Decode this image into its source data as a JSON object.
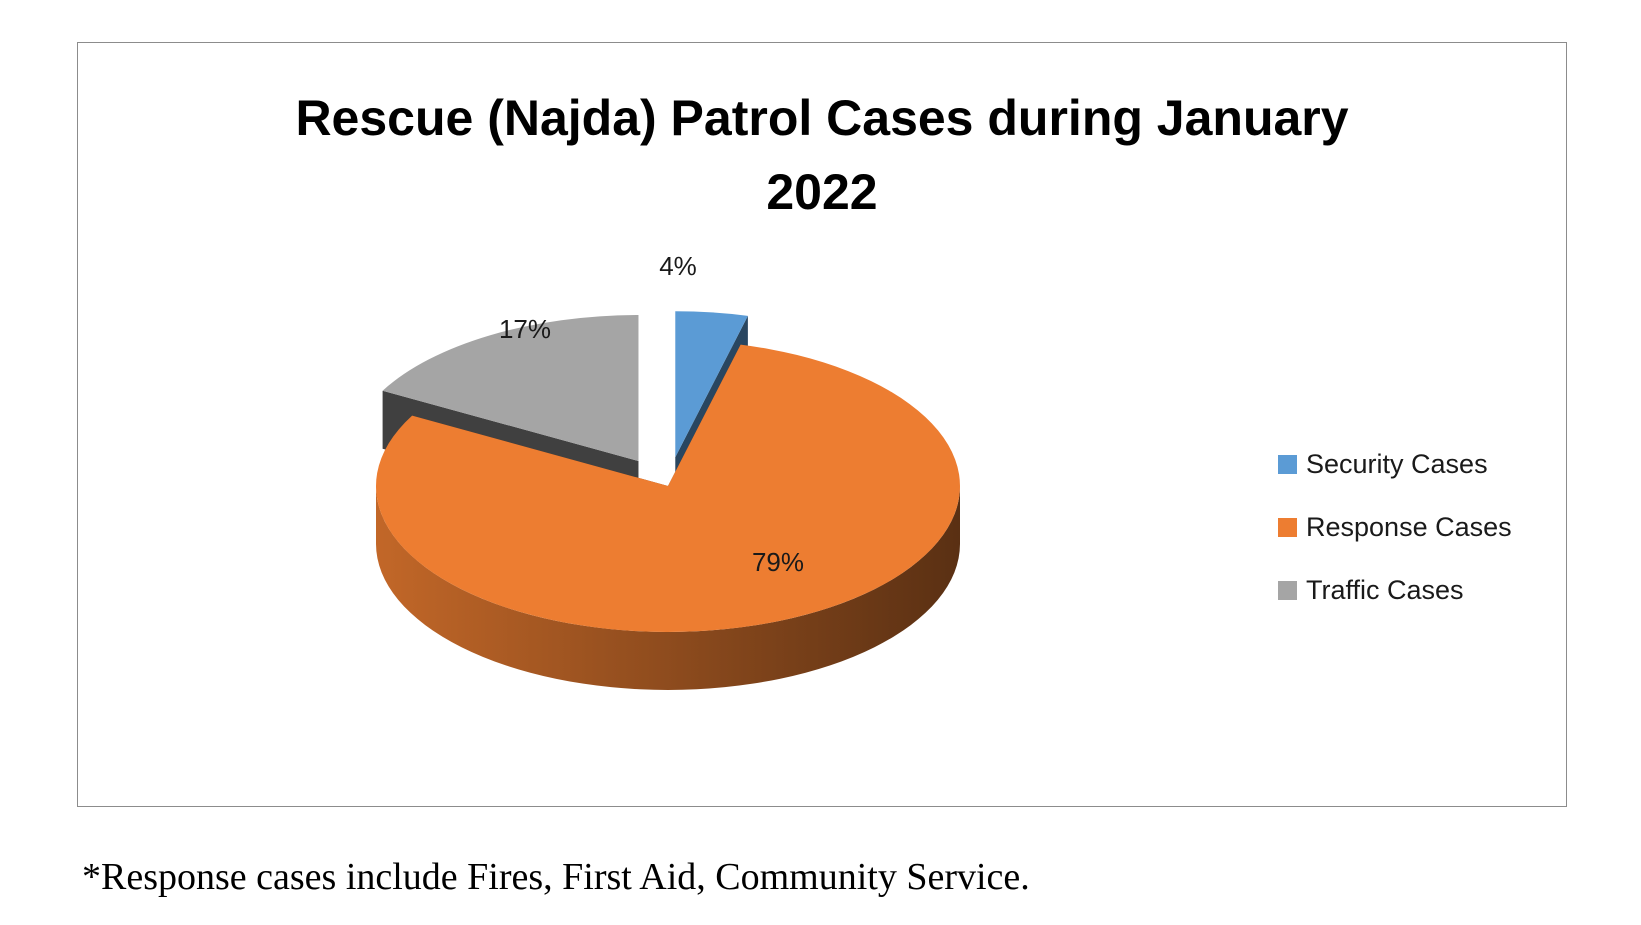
{
  "chart_data": {
    "type": "pie",
    "title": "Rescue (Najda) Patrol Cases during January 2022",
    "title_lines": [
      "Rescue (Najda) Patrol Cases during January",
      "2022"
    ],
    "three_d": true,
    "exploded": true,
    "legend_position": "right",
    "slices": [
      {
        "name": "Security Cases",
        "value": 4,
        "label": "4%",
        "color": "#5B9BD5"
      },
      {
        "name": "Response Cases",
        "value": 79,
        "label": "79%",
        "color": "#ED7D31"
      },
      {
        "name": "Traffic Cases",
        "value": 17,
        "label": "17%",
        "color": "#A5A5A5"
      }
    ]
  },
  "footnote": "*Response cases include Fires, First Aid, Community Service."
}
